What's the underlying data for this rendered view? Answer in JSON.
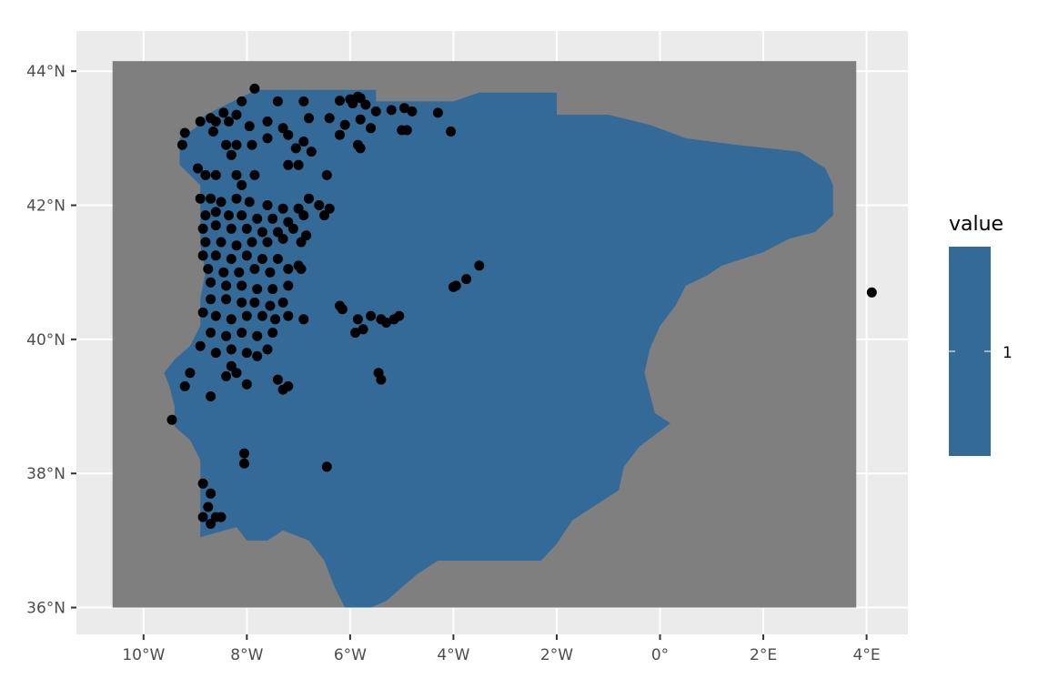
{
  "chart_data": {
    "type": "raster-map",
    "xlim": [
      -11.3,
      4.8
    ],
    "ylim": [
      35.6,
      44.6
    ],
    "raster_extent": {
      "lon": [
        -10.6,
        3.8
      ],
      "lat": [
        36.0,
        44.15
      ]
    },
    "x_ticks": [
      {
        "value": -10,
        "label": "10°W"
      },
      {
        "value": -8,
        "label": "8°W"
      },
      {
        "value": -6,
        "label": "6°W"
      },
      {
        "value": -4,
        "label": "4°W"
      },
      {
        "value": -2,
        "label": "2°W"
      },
      {
        "value": 0,
        "label": "0°"
      },
      {
        "value": 2,
        "label": "2°E"
      },
      {
        "value": 4,
        "label": "4°E"
      }
    ],
    "y_ticks": [
      {
        "value": 36,
        "label": "36°N"
      },
      {
        "value": 38,
        "label": "38°N"
      },
      {
        "value": 40,
        "label": "40°N"
      },
      {
        "value": 42,
        "label": "42°N"
      },
      {
        "value": 44,
        "label": "44°N"
      }
    ],
    "legend": {
      "title": "value",
      "labels": [
        "1"
      ],
      "position": "right"
    },
    "grid": true,
    "colors": {
      "panel": "#ebebeb",
      "grid": "#ffffff",
      "na": "#7f7f7f",
      "fill": "#336a98",
      "point": "#000000"
    },
    "land_polygon": [
      [
        -7.8,
        43.72
      ],
      [
        -5.5,
        43.72
      ],
      [
        -5.5,
        43.55
      ],
      [
        -4.0,
        43.55
      ],
      [
        -3.5,
        43.68
      ],
      [
        -2.0,
        43.68
      ],
      [
        -2.0,
        43.35
      ],
      [
        -1.0,
        43.35
      ],
      [
        -0.2,
        43.2
      ],
      [
        0.5,
        43.0
      ],
      [
        1.5,
        42.9
      ],
      [
        2.7,
        42.8
      ],
      [
        3.2,
        42.55
      ],
      [
        3.35,
        42.3
      ],
      [
        3.35,
        41.85
      ],
      [
        3.0,
        41.6
      ],
      [
        2.5,
        41.5
      ],
      [
        2.0,
        41.3
      ],
      [
        1.2,
        41.1
      ],
      [
        0.9,
        40.95
      ],
      [
        0.5,
        40.8
      ],
      [
        0.3,
        40.5
      ],
      [
        0.0,
        40.2
      ],
      [
        -0.2,
        39.85
      ],
      [
        -0.3,
        39.5
      ],
      [
        -0.2,
        39.2
      ],
      [
        -0.1,
        38.9
      ],
      [
        0.2,
        38.75
      ],
      [
        -0.4,
        38.4
      ],
      [
        -0.7,
        38.1
      ],
      [
        -0.8,
        37.75
      ],
      [
        -1.3,
        37.5
      ],
      [
        -1.7,
        37.3
      ],
      [
        -2.0,
        36.95
      ],
      [
        -2.3,
        36.7
      ],
      [
        -4.3,
        36.7
      ],
      [
        -4.7,
        36.5
      ],
      [
        -5.0,
        36.3
      ],
      [
        -5.3,
        36.1
      ],
      [
        -5.6,
        36.0
      ],
      [
        -6.1,
        36.0
      ],
      [
        -6.3,
        36.3
      ],
      [
        -6.5,
        36.7
      ],
      [
        -6.8,
        37.0
      ],
      [
        -7.3,
        37.15
      ],
      [
        -7.6,
        37.0
      ],
      [
        -8.0,
        37.0
      ],
      [
        -8.2,
        37.2
      ],
      [
        -8.9,
        37.05
      ],
      [
        -8.9,
        37.8
      ],
      [
        -8.9,
        38.2
      ],
      [
        -9.1,
        38.5
      ],
      [
        -9.4,
        38.7
      ],
      [
        -9.4,
        39.0
      ],
      [
        -9.5,
        39.3
      ],
      [
        -9.6,
        39.5
      ],
      [
        -9.4,
        39.7
      ],
      [
        -9.1,
        39.9
      ],
      [
        -8.9,
        40.2
      ],
      [
        -8.9,
        40.6
      ],
      [
        -8.8,
        41.0
      ],
      [
        -8.9,
        41.4
      ],
      [
        -8.9,
        41.9
      ],
      [
        -8.9,
        42.3
      ],
      [
        -9.3,
        42.6
      ],
      [
        -9.3,
        43.0
      ],
      [
        -9.0,
        43.15
      ],
      [
        -8.8,
        43.35
      ],
      [
        -8.4,
        43.5
      ],
      [
        -8.0,
        43.65
      ]
    ],
    "points": [
      [
        -7.85,
        43.74
      ],
      [
        -8.1,
        43.55
      ],
      [
        -7.4,
        43.55
      ],
      [
        -6.9,
        43.55
      ],
      [
        -6.2,
        43.56
      ],
      [
        -6.0,
        43.58
      ],
      [
        -5.85,
        43.62
      ],
      [
        -5.8,
        43.6
      ],
      [
        -5.95,
        43.52
      ],
      [
        -5.7,
        43.5
      ],
      [
        -5.5,
        43.4
      ],
      [
        -5.2,
        43.42
      ],
      [
        -4.95,
        43.45
      ],
      [
        -4.8,
        43.4
      ],
      [
        -4.3,
        43.38
      ],
      [
        -8.9,
        43.25
      ],
      [
        -8.7,
        43.3
      ],
      [
        -8.45,
        43.38
      ],
      [
        -8.2,
        43.35
      ],
      [
        -8.35,
        43.25
      ],
      [
        -8.6,
        43.25
      ],
      [
        -7.95,
        43.18
      ],
      [
        -7.6,
        43.25
      ],
      [
        -7.3,
        43.15
      ],
      [
        -6.8,
        43.3
      ],
      [
        -6.4,
        43.3
      ],
      [
        -6.1,
        43.2
      ],
      [
        -5.8,
        43.28
      ],
      [
        -5.6,
        43.15
      ],
      [
        -5.0,
        43.12
      ],
      [
        -4.9,
        43.12
      ],
      [
        -4.05,
        43.1
      ],
      [
        -9.2,
        43.08
      ],
      [
        -9.25,
        42.9
      ],
      [
        -8.65,
        43.1
      ],
      [
        -8.4,
        42.9
      ],
      [
        -8.2,
        42.9
      ],
      [
        -8.3,
        42.75
      ],
      [
        -7.9,
        42.9
      ],
      [
        -7.6,
        43.0
      ],
      [
        -7.2,
        43.05
      ],
      [
        -7.05,
        42.85
      ],
      [
        -6.9,
        42.95
      ],
      [
        -6.75,
        42.8
      ],
      [
        -6.2,
        43.05
      ],
      [
        -5.85,
        42.9
      ],
      [
        -5.8,
        42.85
      ],
      [
        -7.2,
        42.6
      ],
      [
        -7.0,
        42.6
      ],
      [
        -8.95,
        42.55
      ],
      [
        -8.8,
        42.45
      ],
      [
        -8.6,
        42.45
      ],
      [
        -8.2,
        42.45
      ],
      [
        -8.1,
        42.3
      ],
      [
        -7.85,
        42.45
      ],
      [
        -6.45,
        42.45
      ],
      [
        -8.9,
        42.1
      ],
      [
        -8.7,
        42.1
      ],
      [
        -8.5,
        42.05
      ],
      [
        -8.2,
        42.1
      ],
      [
        -7.95,
        42.05
      ],
      [
        -7.6,
        42.0
      ],
      [
        -7.3,
        41.95
      ],
      [
        -7.0,
        41.95
      ],
      [
        -6.8,
        42.1
      ],
      [
        -6.6,
        42.0
      ],
      [
        -6.4,
        41.95
      ],
      [
        -8.8,
        41.85
      ],
      [
        -8.6,
        41.9
      ],
      [
        -8.35,
        41.85
      ],
      [
        -8.1,
        41.85
      ],
      [
        -7.8,
        41.8
      ],
      [
        -7.5,
        41.8
      ],
      [
        -7.2,
        41.75
      ],
      [
        -6.9,
        41.85
      ],
      [
        -6.5,
        41.85
      ],
      [
        -8.85,
        41.65
      ],
      [
        -8.6,
        41.7
      ],
      [
        -8.3,
        41.65
      ],
      [
        -8.0,
        41.65
      ],
      [
        -7.7,
        41.6
      ],
      [
        -7.4,
        41.6
      ],
      [
        -7.1,
        41.65
      ],
      [
        -6.85,
        41.55
      ],
      [
        -8.8,
        41.45
      ],
      [
        -8.5,
        41.45
      ],
      [
        -8.2,
        41.4
      ],
      [
        -7.9,
        41.45
      ],
      [
        -7.6,
        41.45
      ],
      [
        -7.3,
        41.5
      ],
      [
        -6.95,
        41.45
      ],
      [
        -8.85,
        41.25
      ],
      [
        -8.6,
        41.25
      ],
      [
        -8.3,
        41.2
      ],
      [
        -8.0,
        41.25
      ],
      [
        -7.7,
        41.2
      ],
      [
        -7.4,
        41.2
      ],
      [
        -7.0,
        41.1
      ],
      [
        -8.75,
        41.05
      ],
      [
        -8.45,
        41.0
      ],
      [
        -8.15,
        41.0
      ],
      [
        -7.85,
        41.05
      ],
      [
        -7.55,
        41.0
      ],
      [
        -7.2,
        41.05
      ],
      [
        -6.95,
        41.05
      ],
      [
        -8.7,
        40.85
      ],
      [
        -8.4,
        40.8
      ],
      [
        -8.1,
        40.8
      ],
      [
        -7.8,
        40.75
      ],
      [
        -7.5,
        40.75
      ],
      [
        -7.2,
        40.8
      ],
      [
        -8.7,
        40.6
      ],
      [
        -8.4,
        40.6
      ],
      [
        -8.1,
        40.55
      ],
      [
        -7.85,
        40.55
      ],
      [
        -7.55,
        40.5
      ],
      [
        -7.3,
        40.55
      ],
      [
        -8.85,
        40.4
      ],
      [
        -8.6,
        40.35
      ],
      [
        -8.3,
        40.3
      ],
      [
        -8.0,
        40.35
      ],
      [
        -7.7,
        40.35
      ],
      [
        -7.45,
        40.3
      ],
      [
        -7.2,
        40.35
      ],
      [
        -6.9,
        40.3
      ],
      [
        -8.7,
        40.1
      ],
      [
        -8.4,
        40.05
      ],
      [
        -8.1,
        40.1
      ],
      [
        -7.8,
        40.05
      ],
      [
        -7.5,
        40.1
      ],
      [
        -6.2,
        40.5
      ],
      [
        -6.15,
        40.45
      ],
      [
        -5.85,
        40.3
      ],
      [
        -5.6,
        40.35
      ],
      [
        -5.4,
        40.3
      ],
      [
        -5.3,
        40.25
      ],
      [
        -5.15,
        40.3
      ],
      [
        -5.05,
        40.35
      ],
      [
        -5.9,
        40.1
      ],
      [
        -5.75,
        40.15
      ],
      [
        -8.9,
        39.9
      ],
      [
        -8.6,
        39.8
      ],
      [
        -8.3,
        39.85
      ],
      [
        -8.0,
        39.8
      ],
      [
        -7.8,
        39.75
      ],
      [
        -7.6,
        39.85
      ],
      [
        -8.3,
        39.6
      ],
      [
        -8.4,
        39.45
      ],
      [
        -8.2,
        39.5
      ],
      [
        -7.4,
        39.4
      ],
      [
        -7.2,
        39.3
      ],
      [
        -7.3,
        39.25
      ],
      [
        -9.1,
        39.5
      ],
      [
        -9.2,
        39.3
      ],
      [
        -8.7,
        39.15
      ],
      [
        -8.0,
        39.33
      ],
      [
        -5.45,
        39.5
      ],
      [
        -5.4,
        39.4
      ],
      [
        -9.45,
        38.8
      ],
      [
        -3.5,
        41.1
      ],
      [
        -3.75,
        40.9
      ],
      [
        -3.95,
        40.8
      ],
      [
        -4.0,
        40.78
      ],
      [
        -8.05,
        38.3
      ],
      [
        -8.05,
        38.15
      ],
      [
        -6.45,
        38.1
      ],
      [
        -8.85,
        37.85
      ],
      [
        -8.7,
        37.7
      ],
      [
        -8.75,
        37.5
      ],
      [
        -8.6,
        37.35
      ],
      [
        -8.85,
        37.35
      ],
      [
        -8.5,
        37.35
      ],
      [
        -8.7,
        37.25
      ],
      [
        4.1,
        40.7
      ]
    ]
  }
}
